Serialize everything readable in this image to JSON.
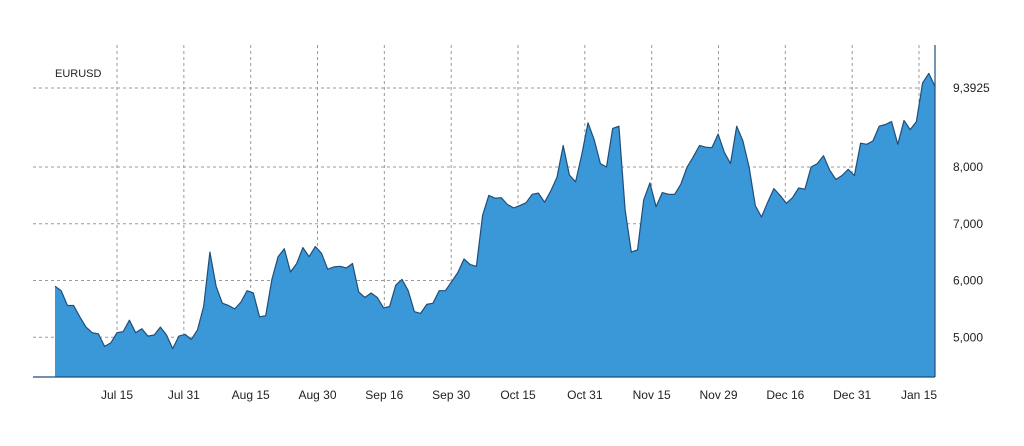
{
  "chart_data": {
    "type": "area",
    "series_label": "EURUSD",
    "x_tick_labels": [
      "Jul 15",
      "Jul 31",
      "Aug 15",
      "Aug 30",
      "Sep 16",
      "Sep 30",
      "Oct 15",
      "Oct 31",
      "Nov 15",
      "Nov 29",
      "Dec 16",
      "Dec 31",
      "Jan 15"
    ],
    "y_ticks": [
      {
        "value": 5000,
        "label": "5,000"
      },
      {
        "value": 6000,
        "label": "6,000"
      },
      {
        "value": 7000,
        "label": "7,000"
      },
      {
        "value": 8000,
        "label": "8,000"
      },
      {
        "value": 9392.5,
        "label": "9,3925"
      }
    ],
    "ylim": [
      4300,
      10150
    ],
    "grid": true,
    "fill_color": "#3a98d8",
    "line_color": "#1f4e79",
    "series": [
      {
        "values": [
          5900,
          5820,
          5560,
          5560,
          5360,
          5180,
          5080,
          5060,
          4840,
          4900,
          5080,
          5100,
          5300,
          5080,
          5150,
          5020,
          5040,
          5180,
          5040,
          4800,
          5020,
          5050,
          4960,
          5130,
          5550,
          6500,
          5900,
          5600,
          5560,
          5500,
          5620,
          5820,
          5780,
          5360,
          5380,
          6020,
          6420,
          6560,
          6150,
          6300,
          6580,
          6420,
          6600,
          6480,
          6200,
          6240,
          6250,
          6220,
          6300,
          5800,
          5700,
          5780,
          5700,
          5520,
          5540,
          5920,
          6020,
          5820,
          5450,
          5420,
          5580,
          5600,
          5820,
          5820,
          5980,
          6140,
          6380,
          6280,
          6250,
          7150,
          7500,
          7450,
          7460,
          7340,
          7280,
          7320,
          7370,
          7520,
          7540,
          7380,
          7580,
          7820,
          8380,
          7860,
          7740,
          8220,
          8780,
          8480,
          8060,
          8000,
          8680,
          8720,
          7250,
          6500,
          6540,
          7420,
          7720,
          7300,
          7550,
          7520,
          7520,
          7700,
          8000,
          8180,
          8380,
          8350,
          8340,
          8580,
          8260,
          8060,
          8720,
          8460,
          8000,
          7320,
          7120,
          7380,
          7620,
          7500,
          7360,
          7460,
          7630,
          7610,
          8000,
          8060,
          8200,
          7950,
          7780,
          7850,
          7960,
          7850,
          8420,
          8400,
          8460,
          8720,
          8750,
          8800,
          8400,
          8820,
          8660,
          8800,
          9480,
          9650,
          9420
        ]
      }
    ]
  }
}
